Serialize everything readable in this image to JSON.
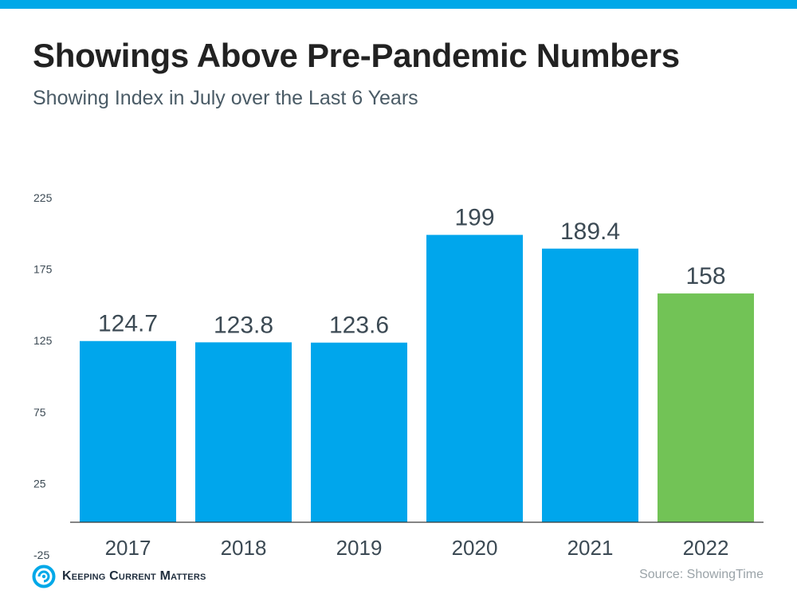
{
  "header": {
    "title": "Showings Above Pre-Pandemic Numbers",
    "subtitle": "Showing Index in July over the Last 6 Years"
  },
  "footer": {
    "brand": "Keeping Current Matters",
    "source": "Source: ShowingTime"
  },
  "colors": {
    "accent_stripe": "#00a8e8",
    "bar_blue": "#00a6ec",
    "bar_green": "#72c356",
    "value_label": "#3c4a54",
    "axis_text": "#3c4a54"
  },
  "chart_data": {
    "type": "bar",
    "title": "Showings Above Pre-Pandemic Numbers",
    "subtitle": "Showing Index in July over the Last 6 Years",
    "xlabel": "",
    "ylabel": "",
    "categories": [
      "2017",
      "2018",
      "2019",
      "2020",
      "2021",
      "2022"
    ],
    "values": [
      124.7,
      123.8,
      123.6,
      199,
      189.4,
      158
    ],
    "value_labels": [
      "124.7",
      "123.8",
      "123.6",
      "199",
      "189.4",
      "158"
    ],
    "bar_colors": [
      "#00a6ec",
      "#00a6ec",
      "#00a6ec",
      "#00a6ec",
      "#00a6ec",
      "#72c356"
    ],
    "yticks": [
      225,
      175,
      125,
      75,
      25,
      -25
    ],
    "ylim": [
      -25,
      225
    ],
    "grid": false,
    "legend": "none"
  }
}
